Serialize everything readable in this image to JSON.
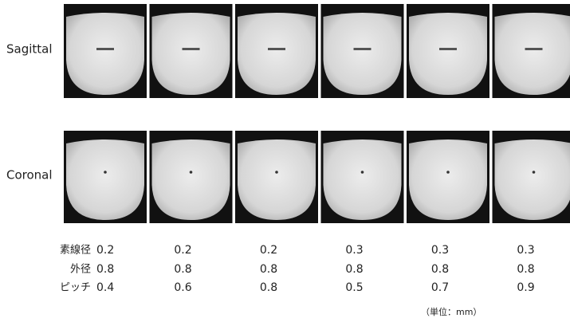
{
  "views": [
    {
      "label": "Sagittal"
    },
    {
      "label": "Coronal"
    }
  ],
  "table": {
    "row_labels": [
      "素線径",
      "外径",
      "ピッチ"
    ],
    "rows": [
      [
        "0.2",
        "0.2",
        "0.2",
        "0.3",
        "0.3",
        "0.3"
      ],
      [
        "0.8",
        "0.8",
        "0.8",
        "0.8",
        "0.8",
        "0.8"
      ],
      [
        "0.4",
        "0.6",
        "0.8",
        "0.5",
        "0.7",
        "0.9"
      ]
    ]
  },
  "unit_note": "（単位：mm）"
}
